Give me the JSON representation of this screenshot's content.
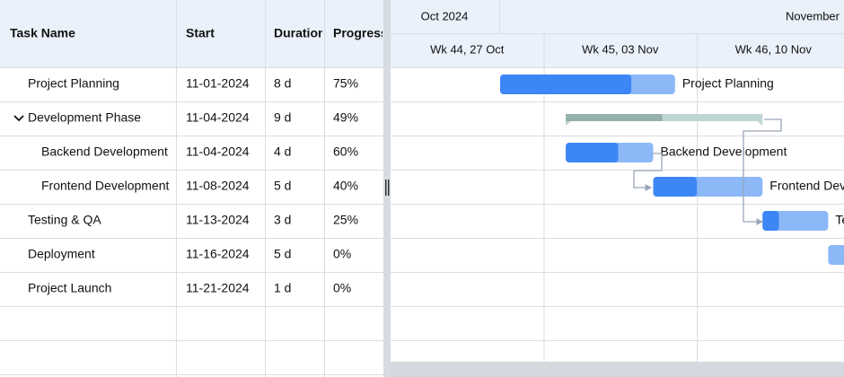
{
  "columns": [
    "Task Name",
    "Start",
    "Duration",
    "Progress"
  ],
  "months": [
    "Oct 2024",
    "November"
  ],
  "weeks": [
    "Wk 44, 27 Oct",
    "Wk 45, 03 Nov",
    "Wk 46, 10 Nov"
  ],
  "tasks": [
    {
      "name": "Project Planning",
      "start": "11-01-2024",
      "duration": "8 d",
      "progress": "75%"
    },
    {
      "name": "Development Phase",
      "start": "11-04-2024",
      "duration": "9 d",
      "progress": "49%",
      "children": [
        {
          "name": "Backend Development",
          "start": "11-04-2024",
          "duration": "4 d",
          "progress": "60%"
        },
        {
          "name": "Frontend Development",
          "start": "11-08-2024",
          "duration": "5 d",
          "progress": "40%"
        }
      ]
    },
    {
      "name": "Testing & QA",
      "start": "11-13-2024",
      "duration": "3 d",
      "progress": "25%"
    },
    {
      "name": "Deployment",
      "start": "11-16-2024",
      "duration": "5 d",
      "progress": "0%"
    },
    {
      "name": "Project Launch",
      "start": "11-21-2024",
      "duration": "1 d",
      "progress": "0%"
    }
  ]
}
